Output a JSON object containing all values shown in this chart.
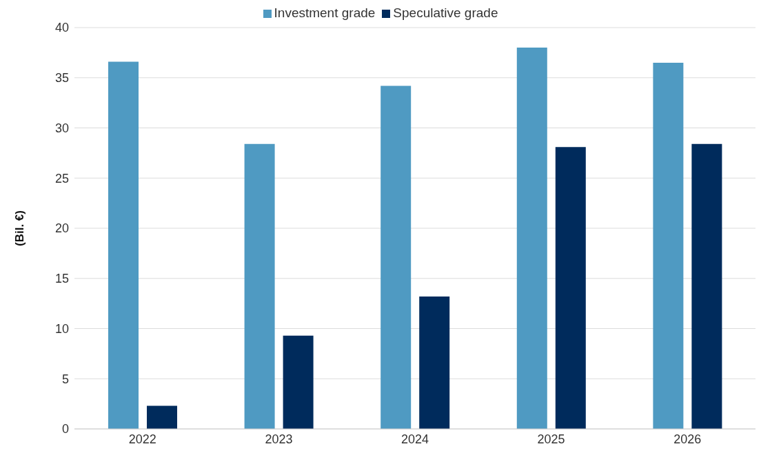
{
  "chart_data": {
    "type": "bar",
    "ylabel": "(Bil. €)",
    "categories": [
      "2022",
      "2023",
      "2024",
      "2025",
      "2026"
    ],
    "series": [
      {
        "name": "Investment grade",
        "color": "#4f9ac2",
        "values": [
          36.6,
          28.4,
          34.2,
          38.0,
          36.5
        ]
      },
      {
        "name": "Speculative grade",
        "color": "#002b5c",
        "values": [
          2.3,
          9.3,
          13.2,
          28.1,
          28.4
        ]
      }
    ],
    "ylim": [
      0,
      40
    ],
    "yticks": [
      0,
      5,
      10,
      15,
      20,
      25,
      30,
      35,
      40
    ],
    "grid": "y",
    "legend": "top"
  }
}
